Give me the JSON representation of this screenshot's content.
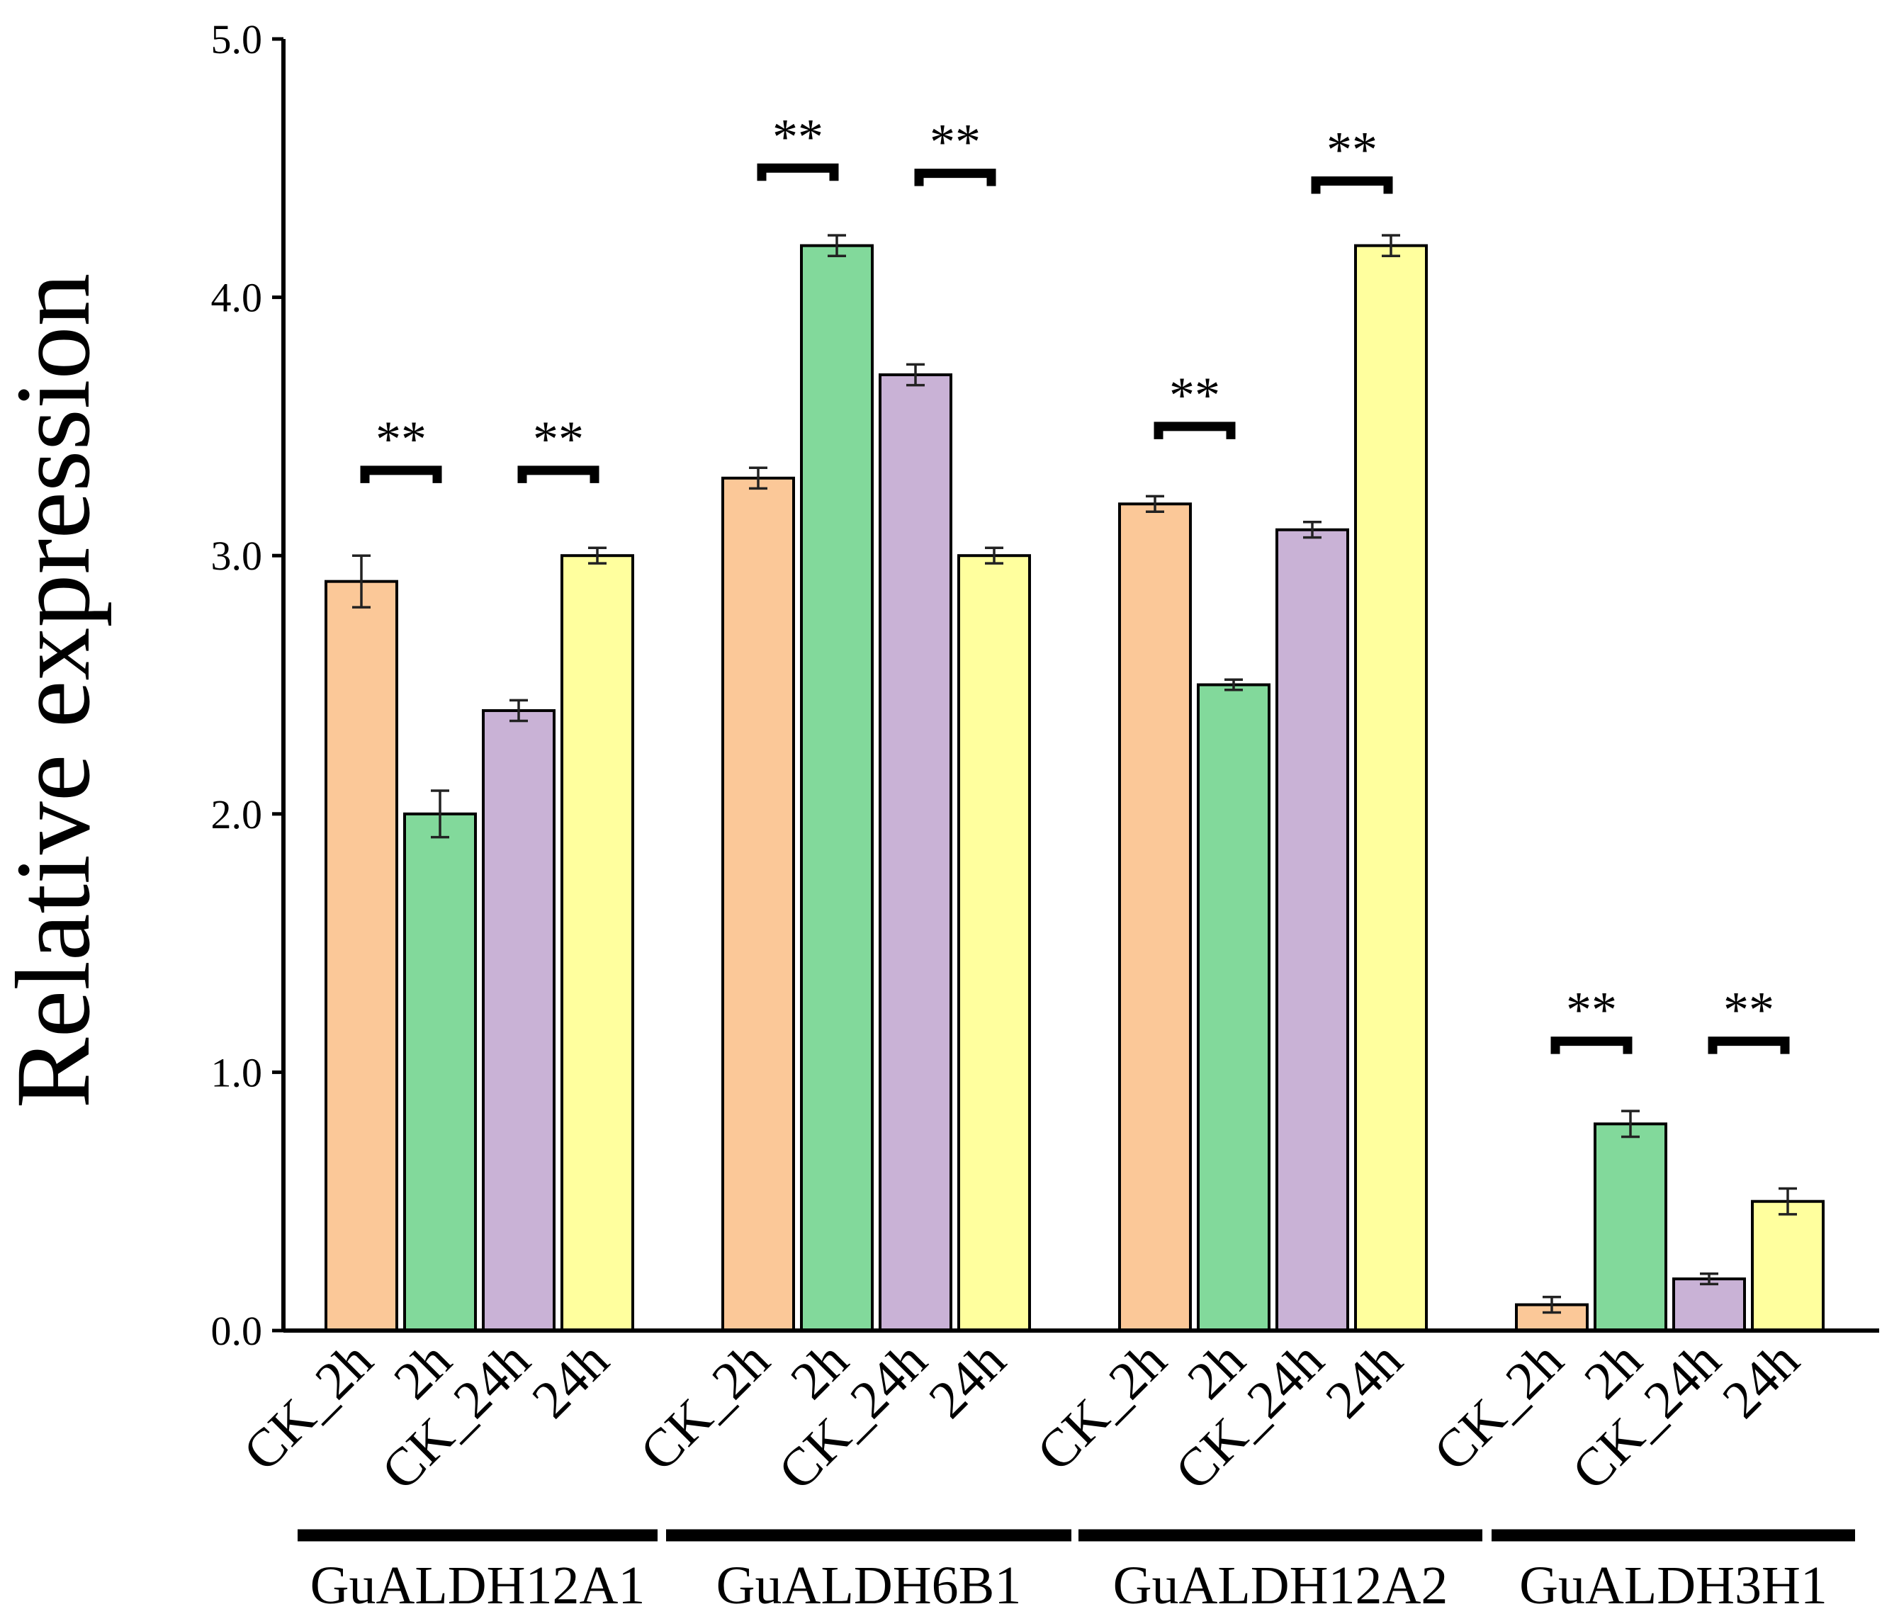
{
  "chart_data": {
    "type": "bar",
    "title": "",
    "xlabel": "",
    "ylabel": "Relative expression",
    "ylim": [
      0,
      5.0
    ],
    "yticks": [
      "0.0",
      "1.0",
      "2.0",
      "3.0",
      "4.0",
      "5.0"
    ],
    "grid": false,
    "categories": [
      "CK_2h",
      "2h",
      "CK_24h",
      "24h"
    ],
    "series": [
      {
        "name": "CK_2h",
        "color": "#FBC898"
      },
      {
        "name": "2h",
        "color": "#82D99B"
      },
      {
        "name": "CK_24h",
        "color": "#C9B2D6"
      },
      {
        "name": "24h",
        "color": "#FFFF9E"
      }
    ],
    "groups": [
      {
        "name": "GuALDH12A1",
        "values": [
          2.9,
          2.0,
          2.4,
          3.0
        ],
        "errors": [
          0.1,
          0.09,
          0.04,
          0.03
        ],
        "significance": [
          {
            "pair": [
              0,
              1
            ],
            "label": "**",
            "level": 3.33
          },
          {
            "pair": [
              2,
              3
            ],
            "label": "**",
            "level": 3.33
          }
        ]
      },
      {
        "name": "GuALDH6B1",
        "values": [
          3.3,
          4.2,
          3.7,
          3.0
        ],
        "errors": [
          0.04,
          0.04,
          0.04,
          0.03
        ],
        "significance": [
          {
            "pair": [
              0,
              1
            ],
            "label": "**",
            "level": 4.5
          },
          {
            "pair": [
              2,
              3
            ],
            "label": "**",
            "level": 4.48
          }
        ]
      },
      {
        "name": "GuALDH12A2",
        "values": [
          3.2,
          2.5,
          3.1,
          4.2
        ],
        "errors": [
          0.03,
          0.02,
          0.03,
          0.04
        ],
        "significance": [
          {
            "pair": [
              0,
              1
            ],
            "label": "**",
            "level": 3.5
          },
          {
            "pair": [
              2,
              3
            ],
            "label": "**",
            "level": 4.45
          }
        ]
      },
      {
        "name": "GuALDH3H1",
        "values": [
          0.1,
          0.8,
          0.2,
          0.5
        ],
        "errors": [
          0.03,
          0.05,
          0.02,
          0.05
        ],
        "significance": [
          {
            "pair": [
              0,
              1
            ],
            "label": "**",
            "level": 1.12
          },
          {
            "pair": [
              2,
              3
            ],
            "label": "**",
            "level": 1.12
          }
        ]
      }
    ]
  }
}
